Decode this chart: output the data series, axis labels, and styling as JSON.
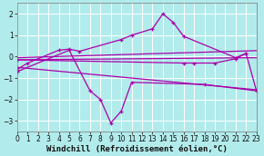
{
  "xlabel": "Windchill (Refroidissement éolien,°C)",
  "background_color": "#b2ebeb",
  "grid_color": "#ffffff",
  "line_color": "#aa00aa",
  "x_values": [
    0,
    1,
    2,
    3,
    4,
    5,
    6,
    7,
    8,
    9,
    10,
    11,
    12,
    13,
    14,
    15,
    16,
    17,
    18,
    19,
    20,
    21,
    22,
    23
  ],
  "y_main": [
    -0.6,
    -0.3,
    null,
    null,
    0.3,
    0.35,
    0.25,
    null,
    null,
    null,
    0.8,
    1.0,
    null,
    1.3,
    2.0,
    1.6,
    0.95,
    null,
    null,
    null,
    null,
    -0.05,
    0.15,
    -1.6
  ],
  "y_flat1": [
    -0.15,
    null,
    null,
    null,
    null,
    null,
    null,
    null,
    null,
    null,
    null,
    null,
    null,
    null,
    null,
    null,
    -0.3,
    -0.3,
    null,
    -0.3,
    null,
    -0.1,
    0.15,
    null
  ],
  "y_descent": [
    -0.7,
    null,
    null,
    null,
    null,
    0.3,
    null,
    -1.6,
    -2.0,
    -3.1,
    -2.55,
    -1.2,
    null,
    null,
    null,
    null,
    null,
    null,
    -1.3,
    null,
    null,
    null,
    null,
    -1.6
  ],
  "line1_x": [
    0,
    23
  ],
  "line1_y": [
    -0.15,
    -0.05
  ],
  "line2_x": [
    0,
    23
  ],
  "line2_y": [
    -0.05,
    0.28
  ],
  "line3_x": [
    0,
    23
  ],
  "line3_y": [
    -0.5,
    -1.55
  ],
  "xlim": [
    0,
    23
  ],
  "ylim": [
    -3.5,
    2.5
  ],
  "yticks": [
    -3,
    -2,
    -1,
    0,
    1,
    2
  ],
  "xticks": [
    0,
    1,
    2,
    3,
    4,
    5,
    6,
    7,
    8,
    9,
    10,
    11,
    12,
    13,
    14,
    15,
    16,
    17,
    18,
    19,
    20,
    21,
    22,
    23
  ],
  "tick_fontsize": 5.5,
  "xlabel_fontsize": 6.5
}
